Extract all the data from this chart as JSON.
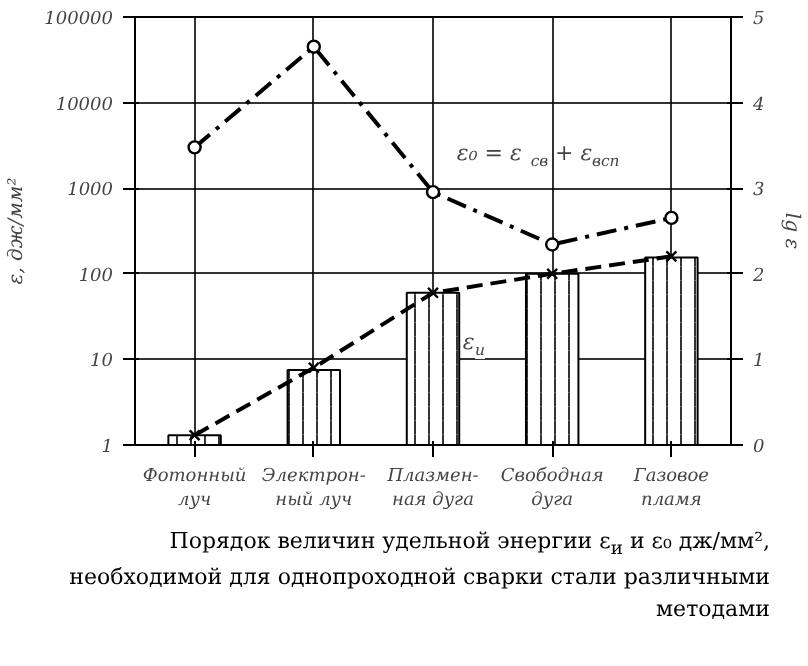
{
  "chart_data": {
    "type": "line",
    "categories": [
      "Фотонный\nлуч",
      "Электрон-\nный луч",
      "Плазмен-\nная дуга",
      "Свободная\nдуга",
      "Газовое\nпламя"
    ],
    "ylabel": "ε, дж/мм²",
    "y2label": "lg ε",
    "log": "y",
    "ylim": [
      1,
      100000
    ],
    "yticks": [
      1,
      10,
      100,
      1000,
      10000,
      100000
    ],
    "y2lim": [
      0,
      5
    ],
    "y2ticks": [
      0,
      1,
      2,
      3,
      4,
      5
    ],
    "grid": true,
    "series": [
      {
        "type": "bar",
        "color": "#000000",
        "values": [
          1.3,
          7.5,
          60,
          100,
          155
        ]
      },
      {
        "name": "ε₀ = ε$_{св}$ + ε$_{всп}$",
        "color": "#000000",
        "marker": "circle",
        "line_style": "dashdot",
        "values": [
          3000,
          45000,
          900,
          220,
          450
        ]
      },
      {
        "name": "ε$_{и}$",
        "color": "#000000",
        "marker": "cross",
        "line_style": "dashed",
        "values": [
          1.3,
          8,
          60,
          100,
          160
        ]
      }
    ],
    "annotations": [
      "Порядок величин удельной энергии ε$_{и}$ и ε₀ дж/мм², необходимой для однопроходной сварки стали различными методами"
    ]
  }
}
